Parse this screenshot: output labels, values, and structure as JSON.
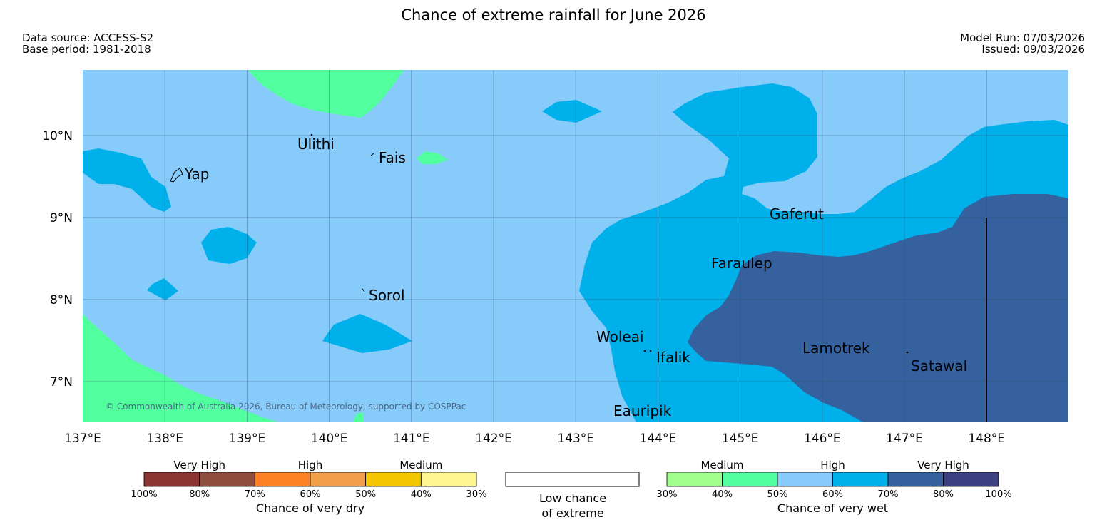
{
  "header": {
    "title": "Chance of extreme rainfall for June 2026",
    "data_source": "Data source: ACCESS-S2",
    "base_period": "Base period: 1981-2018",
    "model_run": "Model Run: 07/03/2026",
    "issued": "Issued: 09/03/2026"
  },
  "map": {
    "lon_ticks": [
      "137°E",
      "138°E",
      "139°E",
      "140°E",
      "141°E",
      "142°E",
      "143°E",
      "144°E",
      "145°E",
      "146°E",
      "147°E",
      "148°E"
    ],
    "lat_ticks": [
      "10°N",
      "9°N",
      "8°N",
      "7°N"
    ],
    "copyright": "© Commonwealth of Australia 2026, Bureau of Meteorology, supported by COSPPac",
    "places": [
      "Ulithi",
      "Fais",
      "Yap",
      "Sorol",
      "Gaferut",
      "Faraulep",
      "Woleai",
      "Ifalik",
      "Lamotrek",
      "Satawal",
      "Eauripik"
    ],
    "colors": {
      "wet_40_50": "#52ff9e",
      "wet_50_60": "#87cbfa",
      "wet_60_70": "#00b0eb",
      "wet_70_80": "#35629e",
      "grid": "#2c4f6e"
    }
  },
  "legend": {
    "dry": {
      "groups": [
        "Very High",
        "High",
        "Medium"
      ],
      "ticks": [
        "100%",
        "80%",
        "70%",
        "60%",
        "50%",
        "40%",
        "30%"
      ],
      "colors": [
        "#8c3533",
        "#8e4e3d",
        "#ff8126",
        "#f29f4a",
        "#f4c700",
        "#fff68f"
      ],
      "caption": "Chance of very dry"
    },
    "neutral": {
      "caption_line1": "Low chance",
      "caption_line2": "of extreme"
    },
    "wet": {
      "groups": [
        "Medium",
        "High",
        "Very High"
      ],
      "ticks": [
        "30%",
        "40%",
        "50%",
        "60%",
        "70%",
        "80%",
        "100%"
      ],
      "colors": [
        "#a0ff8c",
        "#52ff9e",
        "#87cbfa",
        "#00b0eb",
        "#35629e",
        "#3d4080"
      ],
      "caption": "Chance of very wet"
    }
  }
}
